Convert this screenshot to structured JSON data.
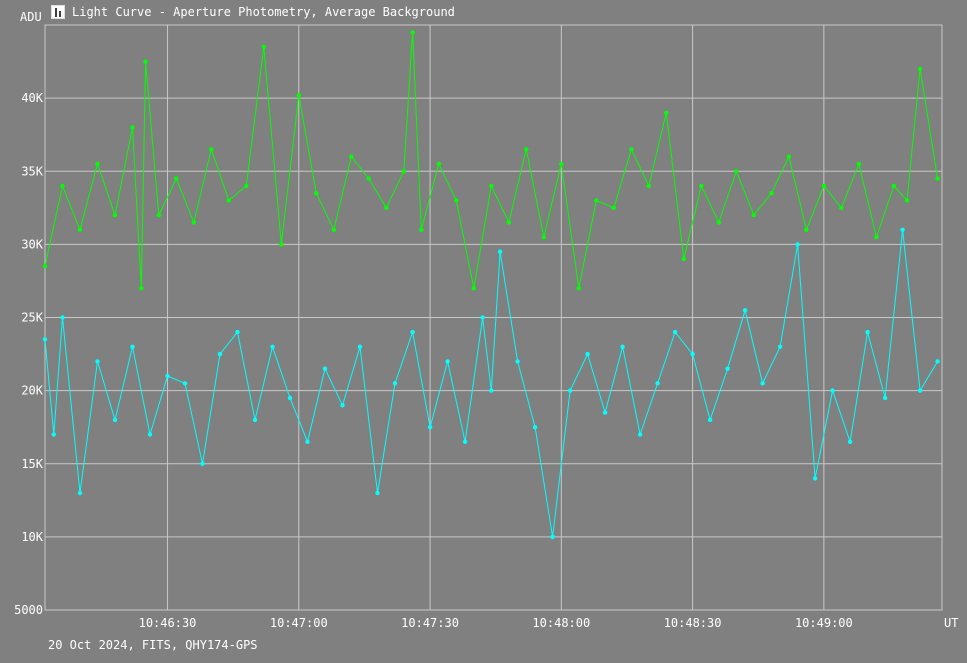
{
  "window": {
    "title": "Light Curve - Aperture Photometry, Average Background",
    "icon": "chart-icon"
  },
  "footer": {
    "info": "20 Oct 2024, FITS, QHY174-GPS"
  },
  "colors": {
    "background": "#808080",
    "grid": "#c8c8c8",
    "series_green": "#00ff00",
    "series_cyan": "#00ffff"
  },
  "chart_data": {
    "type": "line",
    "ylabel": "ADU",
    "xlabel": "UT",
    "ylim": [
      5000,
      45000
    ],
    "xlim": [
      "10:46:02",
      "10:49:27"
    ],
    "grid": true,
    "yticks": [
      {
        "value": 5000,
        "label": "5000"
      },
      {
        "value": 10000,
        "label": "10K"
      },
      {
        "value": 15000,
        "label": "15K"
      },
      {
        "value": 20000,
        "label": "20K"
      },
      {
        "value": 25000,
        "label": "25K"
      },
      {
        "value": 30000,
        "label": "30K"
      },
      {
        "value": 35000,
        "label": "35K"
      },
      {
        "value": 40000,
        "label": "40K"
      }
    ],
    "xticks": [
      {
        "value": "10:46:30",
        "label": "10:46:30"
      },
      {
        "value": "10:47:00",
        "label": "10:47:00"
      },
      {
        "value": "10:47:30",
        "label": "10:47:30"
      },
      {
        "value": "10:48:00",
        "label": "10:48:00"
      },
      {
        "value": "10:48:30",
        "label": "10:48:30"
      },
      {
        "value": "10:49:00",
        "label": "10:49:00"
      }
    ],
    "series": [
      {
        "color": "#00ff00",
        "x": [
          "10:46:02",
          "10:46:06",
          "10:46:10",
          "10:46:14",
          "10:46:18",
          "10:46:22",
          "10:46:24",
          "10:46:25",
          "10:46:28",
          "10:46:32",
          "10:46:36",
          "10:46:40",
          "10:46:44",
          "10:46:48",
          "10:46:52",
          "10:46:56",
          "10:47:00",
          "10:47:04",
          "10:47:08",
          "10:47:12",
          "10:47:16",
          "10:47:20",
          "10:47:24",
          "10:47:26",
          "10:47:28",
          "10:47:32",
          "10:47:36",
          "10:47:40",
          "10:47:44",
          "10:47:48",
          "10:47:52",
          "10:47:56",
          "10:48:00",
          "10:48:04",
          "10:48:08",
          "10:48:12",
          "10:48:16",
          "10:48:20",
          "10:48:24",
          "10:48:28",
          "10:48:32",
          "10:48:36",
          "10:48:40",
          "10:48:44",
          "10:48:48",
          "10:48:52",
          "10:48:56",
          "10:49:00",
          "10:49:04",
          "10:49:08",
          "10:49:12",
          "10:49:16",
          "10:49:19",
          "10:49:22",
          "10:49:26"
        ],
        "y": [
          28500,
          34000,
          31000,
          35500,
          32000,
          38000,
          27000,
          42500,
          32000,
          34500,
          31500,
          36500,
          33000,
          34000,
          43500,
          30000,
          40200,
          33500,
          31000,
          36000,
          34500,
          32500,
          35000,
          44500,
          31000,
          35500,
          33000,
          27000,
          34000,
          31500,
          36500,
          30500,
          35500,
          27000,
          33000,
          32500,
          36500,
          34000,
          39000,
          29000,
          34000,
          31500,
          35000,
          32000,
          33500,
          36000,
          31000,
          34000,
          32500,
          35500,
          30500,
          34000,
          33000,
          42000,
          34500
        ]
      },
      {
        "color": "#00ffff",
        "x": [
          "10:46:02",
          "10:46:04",
          "10:46:06",
          "10:46:10",
          "10:46:14",
          "10:46:18",
          "10:46:22",
          "10:46:26",
          "10:46:30",
          "10:46:34",
          "10:46:38",
          "10:46:42",
          "10:46:46",
          "10:46:50",
          "10:46:54",
          "10:46:58",
          "10:47:02",
          "10:47:06",
          "10:47:10",
          "10:47:14",
          "10:47:18",
          "10:47:22",
          "10:47:26",
          "10:47:30",
          "10:47:34",
          "10:47:38",
          "10:47:42",
          "10:47:44",
          "10:47:46",
          "10:47:50",
          "10:47:54",
          "10:47:58",
          "10:48:02",
          "10:48:06",
          "10:48:10",
          "10:48:14",
          "10:48:18",
          "10:48:22",
          "10:48:26",
          "10:48:30",
          "10:48:34",
          "10:48:38",
          "10:48:42",
          "10:48:46",
          "10:48:50",
          "10:48:54",
          "10:48:58",
          "10:49:02",
          "10:49:06",
          "10:49:10",
          "10:49:14",
          "10:49:18",
          "10:49:22",
          "10:49:26"
        ],
        "y": [
          23500,
          17000,
          25000,
          13000,
          22000,
          18000,
          23000,
          17000,
          21000,
          20500,
          15000,
          22500,
          24000,
          18000,
          23000,
          19500,
          16500,
          21500,
          19000,
          23000,
          13000,
          20500,
          24000,
          17500,
          22000,
          16500,
          25000,
          20000,
          29500,
          22000,
          17500,
          10000,
          20000,
          22500,
          18500,
          23000,
          17000,
          20500,
          24000,
          22500,
          18000,
          21500,
          25500,
          20500,
          23000,
          30000,
          14000,
          20000,
          16500,
          24000,
          19500,
          31000,
          20000,
          22000
        ]
      }
    ]
  }
}
